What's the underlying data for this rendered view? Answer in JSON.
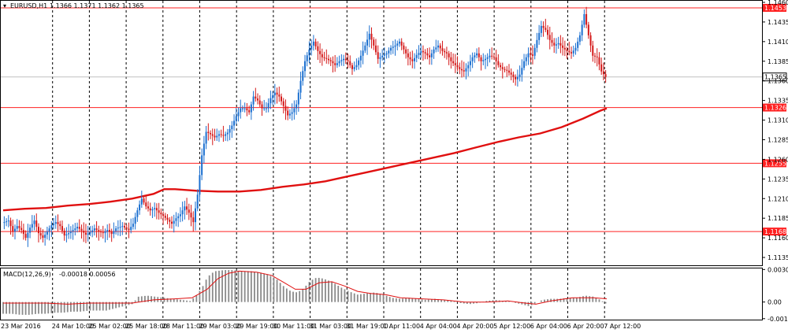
{
  "chart_data": [
    {
      "type": "candlestick",
      "title": "EURUSD,H1",
      "ohlc_label": "1.1366 1.1371 1.1362 1.1365",
      "ylim": [
        1.1125,
        1.1462
      ],
      "y_ticks": [
        "1.1460",
        "1.1435",
        "1.1410",
        "1.1385",
        "1.1360",
        "1.1335",
        "1.1310",
        "1.1285",
        "1.1260",
        "1.1235",
        "1.1210",
        "1.1185",
        "1.1160",
        "1.1135"
      ],
      "x_ticks": [
        "23 Mar 2016",
        "24 Mar 10:00",
        "25 Mar 02:00",
        "25 Mar 18:00",
        "28 Mar 11:00",
        "29 Mar 03:00",
        "29 Mar 19:00",
        "30 Mar 11:00",
        "31 Mar 03:00",
        "31 Mar 19:00",
        "1 Apr 11:00",
        "4 Apr 04:00",
        "4 Apr 20:00",
        "5 Apr 12:00",
        "6 Apr 04:00",
        "6 Apr 20:00",
        "7 Apr 12:00"
      ],
      "horizontal_levels": [
        {
          "label": "1.1453",
          "value": 1.1453
        },
        {
          "label": "1.1326",
          "value": 1.1326
        },
        {
          "label": "1.1255",
          "value": 1.1255
        },
        {
          "label": "1.1168",
          "value": 1.1168
        }
      ],
      "current_price": {
        "label": "1.1365",
        "value": 1.1365
      },
      "price_path": [
        [
          0,
          1.1179
        ],
        [
          6,
          1.1182
        ],
        [
          10,
          1.1168
        ],
        [
          14,
          1.1175
        ],
        [
          18,
          1.117
        ],
        [
          22,
          1.116
        ],
        [
          26,
          1.1173
        ],
        [
          30,
          1.1182
        ],
        [
          34,
          1.1166
        ],
        [
          38,
          1.116
        ],
        [
          42,
          1.1168
        ],
        [
          46,
          1.1176
        ],
        [
          50,
          1.118
        ],
        [
          54,
          1.1175
        ],
        [
          58,
          1.1163
        ],
        [
          62,
          1.1166
        ],
        [
          66,
          1.117
        ],
        [
          70,
          1.1174
        ],
        [
          74,
          1.1169
        ],
        [
          78,
          1.1164
        ],
        [
          82,
          1.1167
        ],
        [
          86,
          1.1172
        ],
        [
          90,
          1.1168
        ],
        [
          94,
          1.1166
        ],
        [
          98,
          1.117
        ],
        [
          102,
          1.1165
        ],
        [
          106,
          1.1172
        ],
        [
          112,
          1.1175
        ],
        [
          118,
          1.117
        ],
        [
          122,
          1.1178
        ],
        [
          126,
          1.1195
        ],
        [
          130,
          1.121
        ],
        [
          134,
          1.12
        ],
        [
          138,
          1.1195
        ],
        [
          142,
          1.1198
        ],
        [
          146,
          1.1192
        ],
        [
          150,
          1.1188
        ],
        [
          154,
          1.1183
        ],
        [
          158,
          1.1178
        ],
        [
          162,
          1.1185
        ],
        [
          166,
          1.119
        ],
        [
          170,
          1.12
        ],
        [
          174,
          1.1192
        ],
        [
          178,
          1.118
        ],
        [
          182,
          1.1215
        ],
        [
          186,
          1.1265
        ],
        [
          190,
          1.1295
        ],
        [
          194,
          1.1292
        ],
        [
          198,
          1.1288
        ],
        [
          202,
          1.1292
        ],
        [
          206,
          1.129
        ],
        [
          210,
          1.1294
        ],
        [
          214,
          1.1303
        ],
        [
          218,
          1.1315
        ],
        [
          222,
          1.1325
        ],
        [
          226,
          1.1325
        ],
        [
          230,
          1.132
        ],
        [
          234,
          1.134
        ],
        [
          238,
          1.1335
        ],
        [
          242,
          1.1325
        ],
        [
          246,
          1.1325
        ],
        [
          250,
          1.1338
        ],
        [
          254,
          1.1345
        ],
        [
          258,
          1.134
        ],
        [
          262,
          1.1328
        ],
        [
          266,
          1.1316
        ],
        [
          270,
          1.132
        ],
        [
          274,
          1.133
        ],
        [
          278,
          1.136
        ],
        [
          282,
          1.1385
        ],
        [
          286,
          1.14
        ],
        [
          290,
          1.141
        ],
        [
          294,
          1.1398
        ],
        [
          298,
          1.139
        ],
        [
          302,
          1.1388
        ],
        [
          306,
          1.1385
        ],
        [
          310,
          1.138
        ],
        [
          314,
          1.1385
        ],
        [
          318,
          1.1388
        ],
        [
          322,
          1.1385
        ],
        [
          326,
          1.1375
        ],
        [
          330,
          1.138
        ],
        [
          334,
          1.1392
        ],
        [
          338,
          1.1405
        ],
        [
          342,
          1.142
        ],
        [
          346,
          1.1405
        ],
        [
          350,
          1.1388
        ],
        [
          354,
          1.1392
        ],
        [
          358,
          1.1395
        ],
        [
          362,
          1.1402
        ],
        [
          366,
          1.1405
        ],
        [
          370,
          1.141
        ],
        [
          374,
          1.14
        ],
        [
          378,
          1.139
        ],
        [
          382,
          1.1385
        ],
        [
          386,
          1.1393
        ],
        [
          390,
          1.1398
        ],
        [
          394,
          1.1395
        ],
        [
          398,
          1.139
        ],
        [
          402,
          1.14
        ],
        [
          406,
          1.1405
        ],
        [
          410,
          1.1398
        ],
        [
          414,
          1.1395
        ],
        [
          418,
          1.1385
        ],
        [
          422,
          1.138
        ],
        [
          426,
          1.1375
        ],
        [
          430,
          1.1372
        ],
        [
          434,
          1.138
        ],
        [
          438,
          1.139
        ],
        [
          442,
          1.1395
        ],
        [
          446,
          1.1385
        ],
        [
          450,
          1.1388
        ],
        [
          454,
          1.1392
        ],
        [
          458,
          1.139
        ],
        [
          462,
          1.138
        ],
        [
          466,
          1.1375
        ],
        [
          470,
          1.1373
        ],
        [
          474,
          1.1368
        ],
        [
          478,
          1.1362
        ],
        [
          482,
          1.1368
        ],
        [
          486,
          1.1385
        ],
        [
          490,
          1.1395
        ],
        [
          494,
          1.1392
        ],
        [
          498,
          1.1412
        ],
        [
          502,
          1.143
        ],
        [
          506,
          1.1425
        ],
        [
          510,
          1.1412
        ],
        [
          514,
          1.1405
        ],
        [
          518,
          1.1408
        ],
        [
          522,
          1.1402
        ],
        [
          526,
          1.1398
        ],
        [
          530,
          1.1395
        ],
        [
          534,
          1.1402
        ],
        [
          538,
          1.1418
        ],
        [
          542,
          1.1445
        ],
        [
          546,
          1.1418
        ],
        [
          550,
          1.1392
        ],
        [
          554,
          1.139
        ],
        [
          558,
          1.1372
        ],
        [
          562,
          1.1365
        ]
      ],
      "moving_average": [
        [
          0,
          1.1195
        ],
        [
          20,
          1.1197
        ],
        [
          40,
          1.1198
        ],
        [
          60,
          1.1201
        ],
        [
          80,
          1.1203
        ],
        [
          100,
          1.1206
        ],
        [
          120,
          1.121
        ],
        [
          140,
          1.1216
        ],
        [
          150,
          1.1222
        ],
        [
          160,
          1.1222
        ],
        [
          180,
          1.122
        ],
        [
          200,
          1.1219
        ],
        [
          220,
          1.1219
        ],
        [
          240,
          1.1221
        ],
        [
          260,
          1.1225
        ],
        [
          280,
          1.1228
        ],
        [
          300,
          1.1232
        ],
        [
          320,
          1.1238
        ],
        [
          340,
          1.1244
        ],
        [
          360,
          1.125
        ],
        [
          380,
          1.1256
        ],
        [
          400,
          1.1262
        ],
        [
          420,
          1.1268
        ],
        [
          440,
          1.1275
        ],
        [
          460,
          1.1282
        ],
        [
          480,
          1.1288
        ],
        [
          500,
          1.1293
        ],
        [
          520,
          1.1301
        ],
        [
          540,
          1.1312
        ],
        [
          556,
          1.1322
        ],
        [
          562,
          1.1325
        ]
      ]
    },
    {
      "type": "bar",
      "title": "MACD(12,26,9)",
      "values_label": "-0.00018 0.00056",
      "ylim": [
        -0.00165,
        0.00315
      ],
      "y_ticks": [
        "0.00305",
        "0.00",
        "-0.00156"
      ],
      "histogram": [
        [
          0,
          -0.0011
        ],
        [
          8,
          -0.0011
        ],
        [
          16,
          -0.0012
        ],
        [
          24,
          -0.0012
        ],
        [
          32,
          -0.0011
        ],
        [
          40,
          -0.0011
        ],
        [
          48,
          -0.001
        ],
        [
          56,
          -0.001
        ],
        [
          64,
          -0.0009
        ],
        [
          72,
          -0.0009
        ],
        [
          80,
          -0.0008
        ],
        [
          88,
          -0.0008
        ],
        [
          96,
          -0.0008
        ],
        [
          104,
          -0.0006
        ],
        [
          112,
          -0.0004
        ],
        [
          120,
          -0.0002
        ],
        [
          126,
          0.0005
        ],
        [
          134,
          0.0006
        ],
        [
          142,
          0.0005
        ],
        [
          150,
          0.0004
        ],
        [
          158,
          0.0003
        ],
        [
          166,
          0.0002
        ],
        [
          174,
          0.0001
        ],
        [
          180,
          0.0006
        ],
        [
          186,
          0.0015
        ],
        [
          190,
          0.0023
        ],
        [
          194,
          0.0027
        ],
        [
          198,
          0.0029
        ],
        [
          206,
          0.003
        ],
        [
          214,
          0.003
        ],
        [
          222,
          0.0029
        ],
        [
          230,
          0.0029
        ],
        [
          238,
          0.0028
        ],
        [
          246,
          0.0026
        ],
        [
          254,
          0.0022
        ],
        [
          262,
          0.0014
        ],
        [
          268,
          0.001
        ],
        [
          274,
          0.0009
        ],
        [
          280,
          0.0013
        ],
        [
          286,
          0.002
        ],
        [
          292,
          0.0023
        ],
        [
          298,
          0.0022
        ],
        [
          306,
          0.0019
        ],
        [
          314,
          0.0014
        ],
        [
          322,
          0.001
        ],
        [
          330,
          0.0007
        ],
        [
          338,
          0.0008
        ],
        [
          346,
          0.0009
        ],
        [
          354,
          0.0007
        ],
        [
          362,
          0.0004
        ],
        [
          370,
          0.0003
        ],
        [
          378,
          0.0004
        ],
        [
          386,
          0.0003
        ],
        [
          394,
          0.0002
        ],
        [
          402,
          0.0003
        ],
        [
          410,
          0.0002
        ],
        [
          418,
          0.0001
        ],
        [
          426,
          -0.0001
        ],
        [
          434,
          -0.0002
        ],
        [
          442,
          -0.0001
        ],
        [
          450,
          0.0001
        ],
        [
          458,
          0.0002
        ],
        [
          466,
          0.0001
        ],
        [
          474,
          0.0
        ],
        [
          482,
          -0.0002
        ],
        [
          490,
          -0.0004
        ],
        [
          496,
          -0.0001
        ],
        [
          502,
          0.0002
        ],
        [
          510,
          0.0003
        ],
        [
          518,
          0.0003
        ],
        [
          526,
          0.0004
        ],
        [
          534,
          0.0004
        ],
        [
          542,
          0.0006
        ],
        [
          550,
          0.0005
        ],
        [
          556,
          0.0002
        ],
        [
          562,
          -0.0002
        ]
      ],
      "signal": [
        [
          0,
          -0.0001
        ],
        [
          40,
          -0.0001
        ],
        [
          60,
          -0.0002
        ],
        [
          80,
          -0.0001
        ],
        [
          100,
          -0.0001
        ],
        [
          120,
          -0.0001
        ],
        [
          140,
          0.0002
        ],
        [
          160,
          0.0003
        ],
        [
          176,
          0.0004
        ],
        [
          190,
          0.0012
        ],
        [
          200,
          0.0022
        ],
        [
          210,
          0.0027
        ],
        [
          220,
          0.0029
        ],
        [
          236,
          0.0028
        ],
        [
          250,
          0.0025
        ],
        [
          262,
          0.0018
        ],
        [
          272,
          0.0012
        ],
        [
          282,
          0.0012
        ],
        [
          294,
          0.0018
        ],
        [
          306,
          0.0019
        ],
        [
          318,
          0.0015
        ],
        [
          330,
          0.001
        ],
        [
          342,
          0.0008
        ],
        [
          356,
          0.0007
        ],
        [
          370,
          0.0004
        ],
        [
          390,
          0.0003
        ],
        [
          410,
          0.0002
        ],
        [
          430,
          0.0
        ],
        [
          450,
          0.0
        ],
        [
          470,
          0.0001
        ],
        [
          486,
          -0.0001
        ],
        [
          496,
          -0.0002
        ],
        [
          510,
          0.0001
        ],
        [
          530,
          0.0004
        ],
        [
          550,
          0.0004
        ],
        [
          562,
          0.0003
        ]
      ]
    }
  ],
  "colors": {
    "bull_candle": "#1a6fd0",
    "bear_candle": "#d41818",
    "moving_average": "#e01010",
    "level_line": "#ff2020",
    "macd_histogram": "#8a8a8a",
    "macd_signal": "#e01010",
    "grid": "#000000"
  }
}
